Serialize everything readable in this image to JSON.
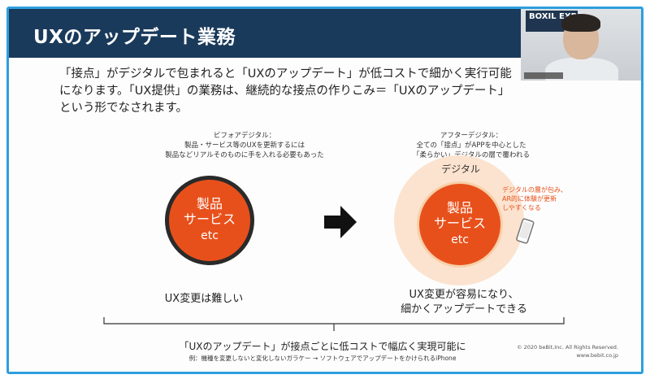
{
  "slide": {
    "title": "UXのアップデート業務",
    "intro": "「接点」がデジタルで包まれると「UXのアップデート」が低コストで細かく実行可能になります。「UX提供」の業務は、継続的な接点の作りこみ＝「UXのアップデート」という形でなされます。",
    "before": {
      "caption_title": "ビフォアデジタル：",
      "caption_line1": "製品・サービス等のUXを更新するには",
      "caption_line2": "製品などリアルそのものに手を入れる必要もあった",
      "circle_line1": "製品",
      "circle_line2": "サービス",
      "circle_line3": "etc",
      "label": "UX変更は難しい"
    },
    "after": {
      "caption_title": "アフターデジタル：",
      "caption_line1": "全ての「接点」がAPPを中心とした",
      "caption_line2": "「柔らかい」デジタルの層で覆われる",
      "layer_label": "デジタル",
      "circle_line1": "製品",
      "circle_line2": "サービス",
      "circle_line3": "etc",
      "note_line1": "デジタルの層が包み、",
      "note_line2": "AR的に体験が更新",
      "note_line3": "しやすくなる",
      "label_line1": "UX変更が容易になり、",
      "label_line2": "細かくアップデートできる"
    },
    "summary": "「UXのアップデート」が接点ごとに低コストで幅広く実現可能に",
    "example": "例：機種を変更しないと変化しないガラケー → ソフトウェアでアップデートをかけられるiPhone",
    "copyright_line1": "© 2020 beBit,Inc. All Rights Reserved.",
    "copyright_line2": "www.bebit.co.jp"
  },
  "webcam": {
    "sign_text": "BOXIL EXPO"
  },
  "colors": {
    "title_bar": "#1a3a5b",
    "frame_border": "#2e9fdd",
    "accent_orange": "#e8501b",
    "halo": "#fbe3cf"
  },
  "icons": {
    "arrow": "right-arrow-icon",
    "phone": "smartphone-icon"
  }
}
